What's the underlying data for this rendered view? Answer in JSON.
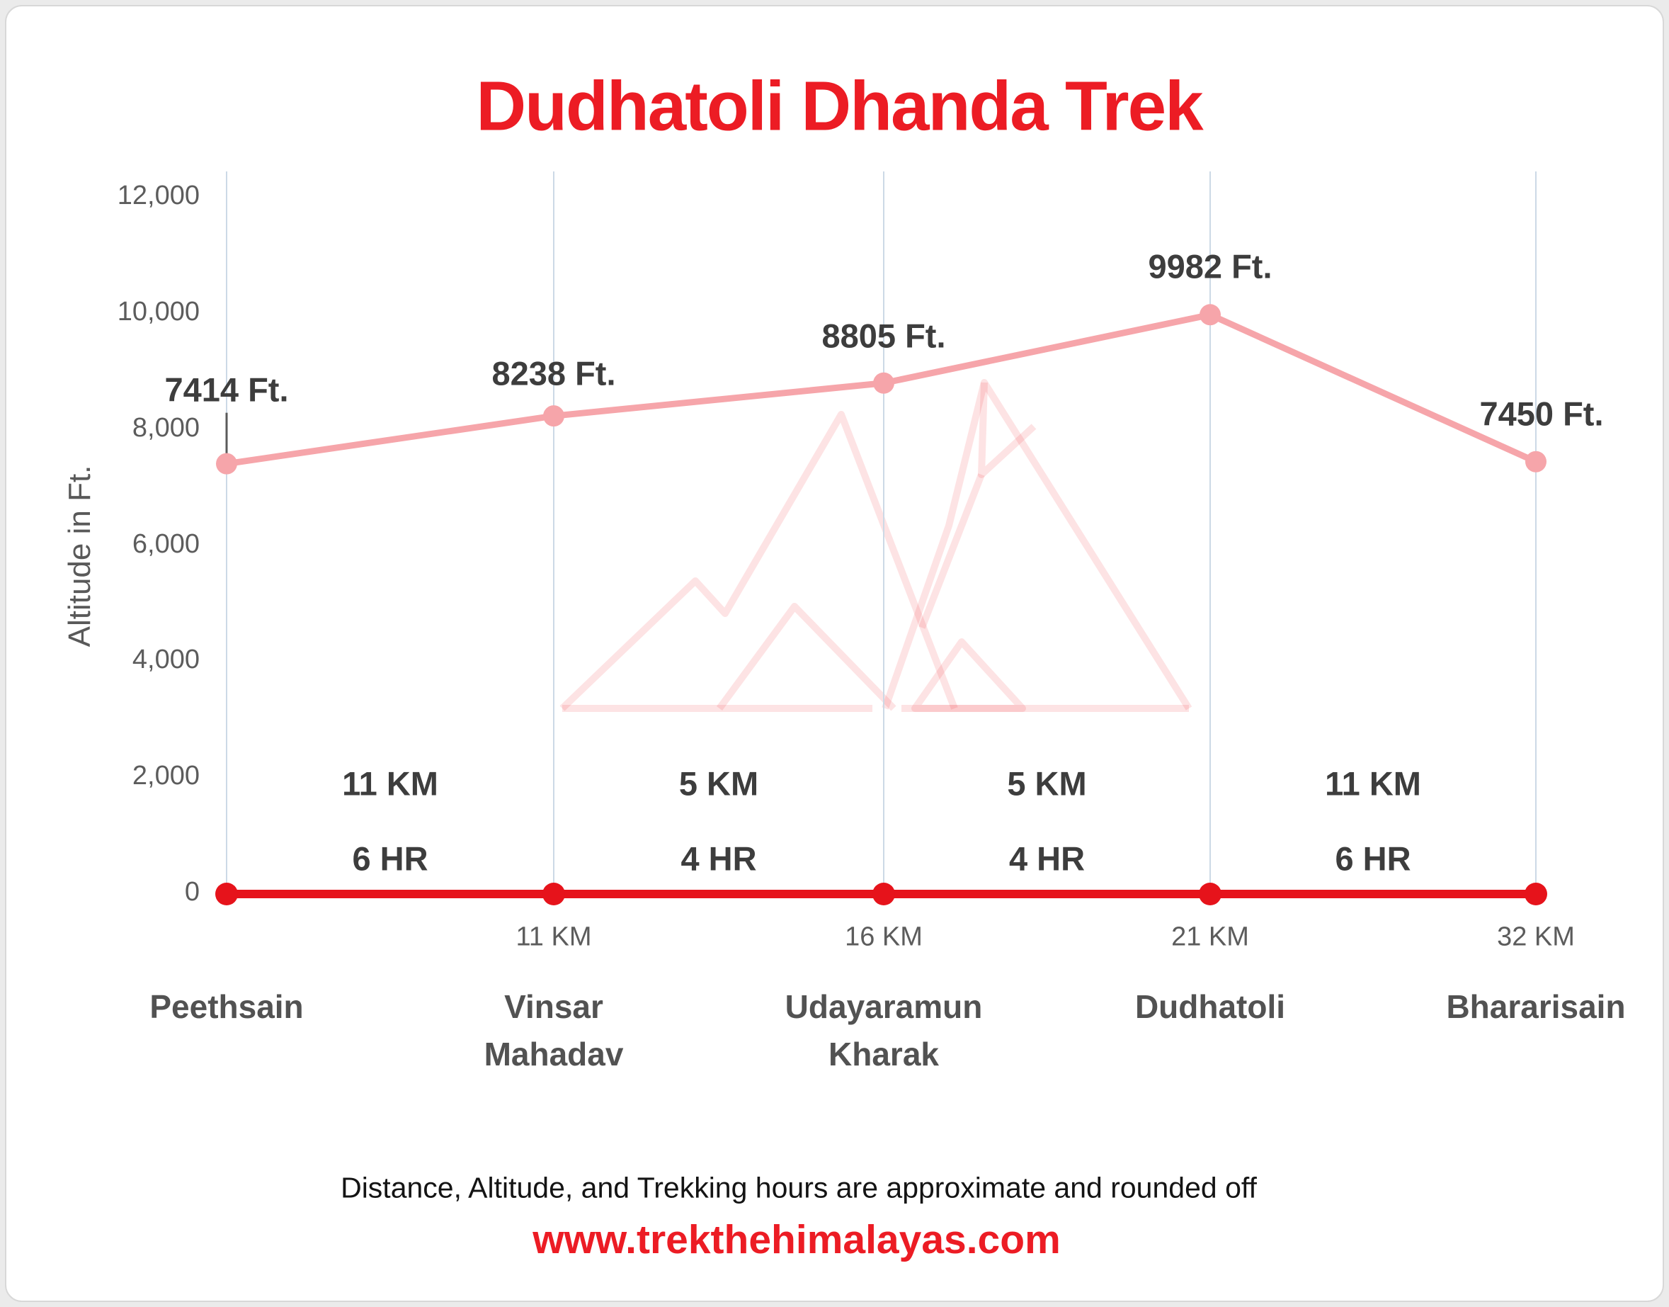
{
  "page": {
    "background": "#ebebeb",
    "card_background": "#ffffff"
  },
  "colors": {
    "accent_red": "#EC1C24",
    "baseline_red": "#E6131B",
    "line_pink": "#F6A5AA",
    "gridline": "#CCD9E6",
    "watermark_red": "#EC1C24",
    "text_dark": "#3D3D3D",
    "text_gray": "#5C5C5C",
    "station_text": "#525252",
    "leader_gray": "#5A5A5A"
  },
  "chart_data": {
    "type": "line",
    "title": "Dudhatoli Dhanda Trek",
    "ylabel": "Altitude in Ft.",
    "ylim": [
      0,
      12000
    ],
    "grid": "vertical-only",
    "legend": "none",
    "yticks": [
      {
        "value": 0,
        "label": "0"
      },
      {
        "value": 2000,
        "label": "2,000"
      },
      {
        "value": 4000,
        "label": "4,000"
      },
      {
        "value": 6000,
        "label": "6,000"
      },
      {
        "value": 8000,
        "label": "8,000"
      },
      {
        "value": 10000,
        "label": "10,000"
      },
      {
        "value": 12000,
        "label": "12,000"
      }
    ],
    "stations": [
      {
        "name_lines": [
          "Peethsain"
        ],
        "altitude_ft": 7414,
        "altitude_label": "7414 Ft.",
        "distance_label": null
      },
      {
        "name_lines": [
          "Vinsar",
          "Mahadav"
        ],
        "altitude_ft": 8238,
        "altitude_label": "8238 Ft.",
        "distance_label": "11 KM"
      },
      {
        "name_lines": [
          "Udayaramun",
          "Kharak"
        ],
        "altitude_ft": 8805,
        "altitude_label": "8805 Ft.",
        "distance_label": "16 KM"
      },
      {
        "name_lines": [
          "Dudhatoli"
        ],
        "altitude_ft": 9982,
        "altitude_label": "9982 Ft.",
        "distance_label": "21 KM"
      },
      {
        "name_lines": [
          "Bhararisain"
        ],
        "altitude_ft": 7450,
        "altitude_label": "7450 Ft.",
        "distance_label": "32 KM"
      }
    ],
    "segments": [
      {
        "distance": "11 KM",
        "hours": "6 HR"
      },
      {
        "distance": "5 KM",
        "hours": "4 HR"
      },
      {
        "distance": "5 KM",
        "hours": "4 HR"
      },
      {
        "distance": "11 KM",
        "hours": "6 HR"
      }
    ]
  },
  "footer": {
    "note": "Distance, Altitude, and Trekking hours are approximate and rounded off",
    "website": "www.trekthehimalayas.com"
  }
}
